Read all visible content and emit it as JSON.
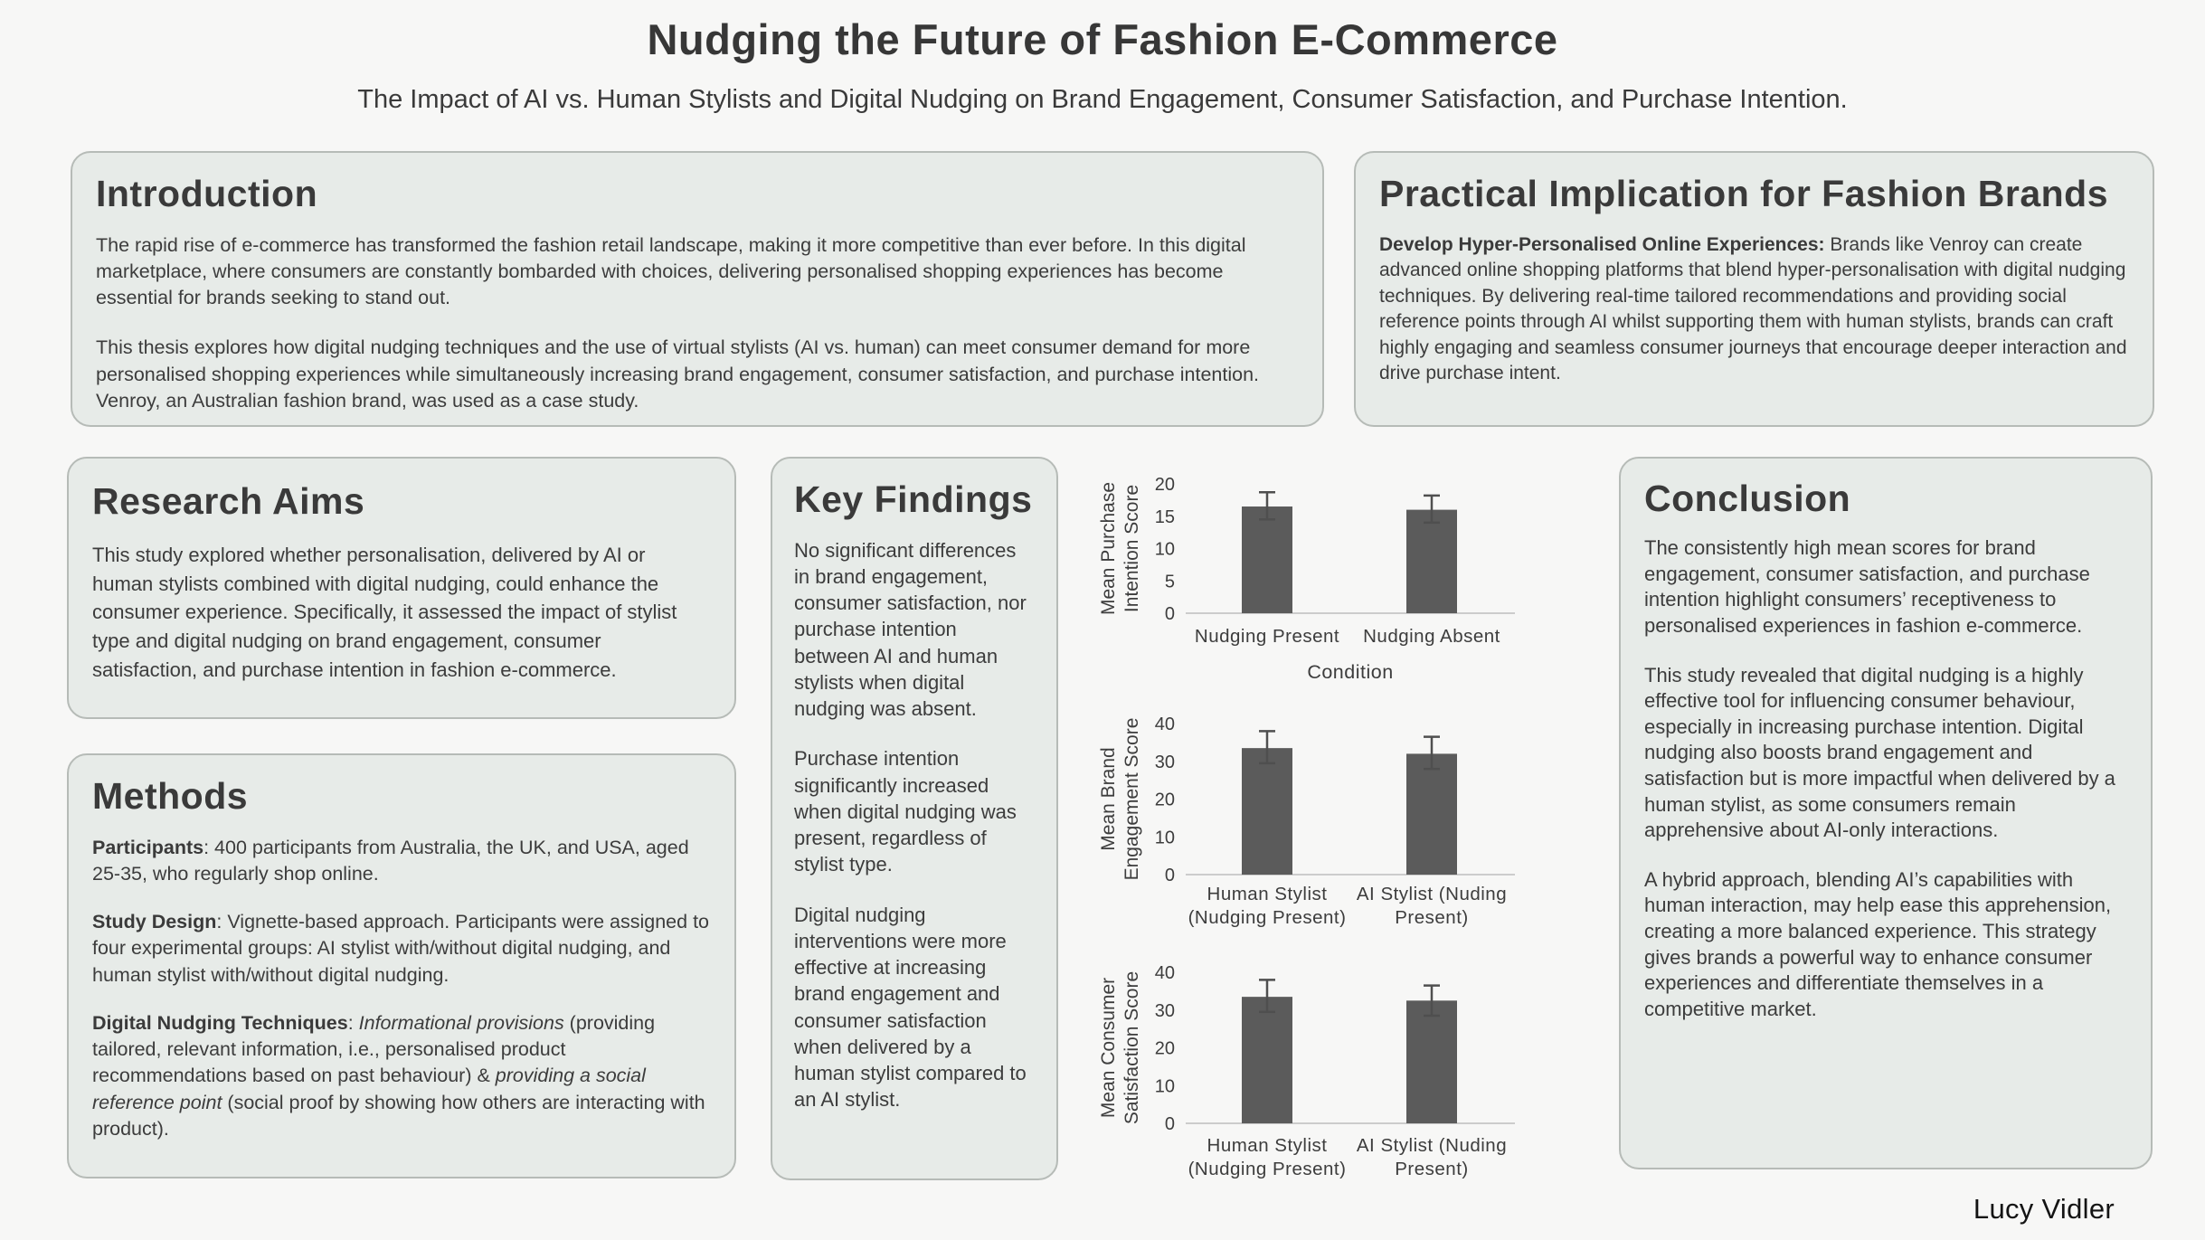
{
  "poster": {
    "title": "Nudging the Future of Fashion E-Commerce",
    "subtitle": "The Impact of AI vs. Human Stylists and Digital Nudging on Brand Engagement, Consumer Satisfaction, and Purchase Intention.",
    "author": "Lucy Vidler"
  },
  "sections": {
    "introduction": {
      "heading": "Introduction",
      "para1": "The rapid rise of e-commerce has transformed the fashion retail landscape, making it more competitive than ever before. In this digital marketplace, where consumers are constantly bombarded with choices, delivering personalised shopping experiences has become essential for brands seeking to stand out.",
      "para2": "This thesis explores how digital nudging techniques and the use of virtual stylists (AI vs. human) can meet consumer demand for more personalised shopping experiences while simultaneously increasing brand engagement, consumer satisfaction, and purchase intention. Venroy, an Australian fashion brand, was used as a case study."
    },
    "practical": {
      "heading": "Practical Implication for Fashion Brands",
      "bold_lead": "Develop Hyper-Personalised Online Experiences:",
      "body": " Brands like Venroy can create advanced online shopping platforms that blend hyper-personalisation with digital nudging techniques. By delivering real-time tailored recommendations and providing social reference points through AI whilst supporting them with human stylists, brands can craft highly engaging and seamless consumer journeys that encourage deeper interaction and drive purchase intent."
    },
    "research_aims": {
      "heading": "Research Aims",
      "body": "This study explored whether personalisation, delivered by AI or human stylists combined with digital nudging, could enhance the consumer experience. Specifically, it assessed the impact of stylist type and digital nudging on brand engagement, consumer satisfaction, and purchase intention in fashion e-commerce."
    },
    "methods": {
      "heading": "Methods",
      "participants_label": "Participants",
      "participants_text": ": 400 participants from Australia, the UK, and USA, aged 25-35, who regularly shop online.",
      "design_label": "Study Design",
      "design_text": ": Vignette-based approach. Participants were assigned to four experimental groups: AI stylist with/without digital nudging, and human stylist with/without digital nudging.",
      "nudging_label": "Digital Nudging Techniques",
      "nudging_sep": ": ",
      "nudging_italic1": "Informational provisions",
      "nudging_text1": " (providing tailored, relevant information, i.e., personalised product recommendations based on past behaviour) & ",
      "nudging_italic2": "providing a social reference point",
      "nudging_text2": " (social proof by showing how others are interacting with product)."
    },
    "key_findings": {
      "heading": "Key Findings",
      "para1": "No significant differences in brand engagement, consumer satisfaction, nor purchase intention between AI and human stylists when digital nudging was absent.",
      "para2": "Purchase intention significantly increased when digital nudging was present, regardless of stylist type.",
      "para3": "Digital nudging interventions were more effective at increasing brand engagement and consumer satisfaction when delivered by a human stylist compared to an AI stylist."
    },
    "conclusion": {
      "heading": "Conclusion",
      "para1": "The consistently high mean scores for brand engagement, consumer satisfaction, and purchase intention highlight consumers’ receptiveness to personalised experiences in fashion e-commerce.",
      "para2": "This study revealed that digital nudging is a highly effective tool for influencing consumer behaviour, especially in increasing purchase intention. Digital nudging also boosts brand engagement and satisfaction but is more impactful when delivered by a human stylist, as some consumers remain apprehensive about AI-only interactions.",
      "para3": "A hybrid approach, blending AI’s capabilities with human interaction, may help ease this apprehension, creating a more balanced experience. This strategy gives brands a powerful way to enhance consumer experiences and differentiate themselves in a competitive market."
    }
  },
  "chart_data": [
    {
      "type": "bar",
      "title": "",
      "ylabel": "Mean Purchase\nIntention Score",
      "xlabel": "Condition",
      "categories": [
        "Nudging Present",
        "Nudging Absent"
      ],
      "values": [
        16.5,
        16
      ],
      "error_plus": [
        2.2,
        2.2
      ],
      "error_minus": [
        2,
        2
      ],
      "ylim": [
        0,
        20
      ],
      "yticks": [
        0,
        5,
        10,
        15,
        20
      ],
      "grid": false,
      "legend": "none"
    },
    {
      "type": "bar",
      "title": "",
      "ylabel": "Mean Brand\nEngagement Score",
      "xlabel": "",
      "categories": [
        "Human Stylist\n(Nudging Present)",
        "AI Stylist (Nuding\nPresent)"
      ],
      "values": [
        33.5,
        32
      ],
      "error_plus": [
        4.5,
        4.5
      ],
      "error_minus": [
        4,
        4
      ],
      "ylim": [
        0,
        40
      ],
      "yticks": [
        0,
        10,
        20,
        30,
        40
      ],
      "grid": false,
      "legend": "none"
    },
    {
      "type": "bar",
      "title": "",
      "ylabel": "Mean Consumer\nSatisfaction Score",
      "xlabel": "",
      "categories": [
        "Human Stylist\n(Nudging Present)",
        "AI Stylist (Nuding\nPresent)"
      ],
      "values": [
        33.5,
        32.5
      ],
      "error_plus": [
        4.5,
        4
      ],
      "error_minus": [
        4,
        4
      ],
      "ylim": [
        0,
        40
      ],
      "yticks": [
        0,
        10,
        20,
        30,
        40
      ],
      "grid": false,
      "legend": "none"
    }
  ],
  "colors": {
    "page_background": "#f7f7f6",
    "card_background": "#e7ebe8",
    "card_border": "#b6bbb7",
    "bar_fill": "#5b5b5b",
    "error_bar": "#4f4f4f",
    "axis_baseline": "#cccccc",
    "chart_text": "#3d3d3d",
    "body_text": "#3c3c3c"
  }
}
